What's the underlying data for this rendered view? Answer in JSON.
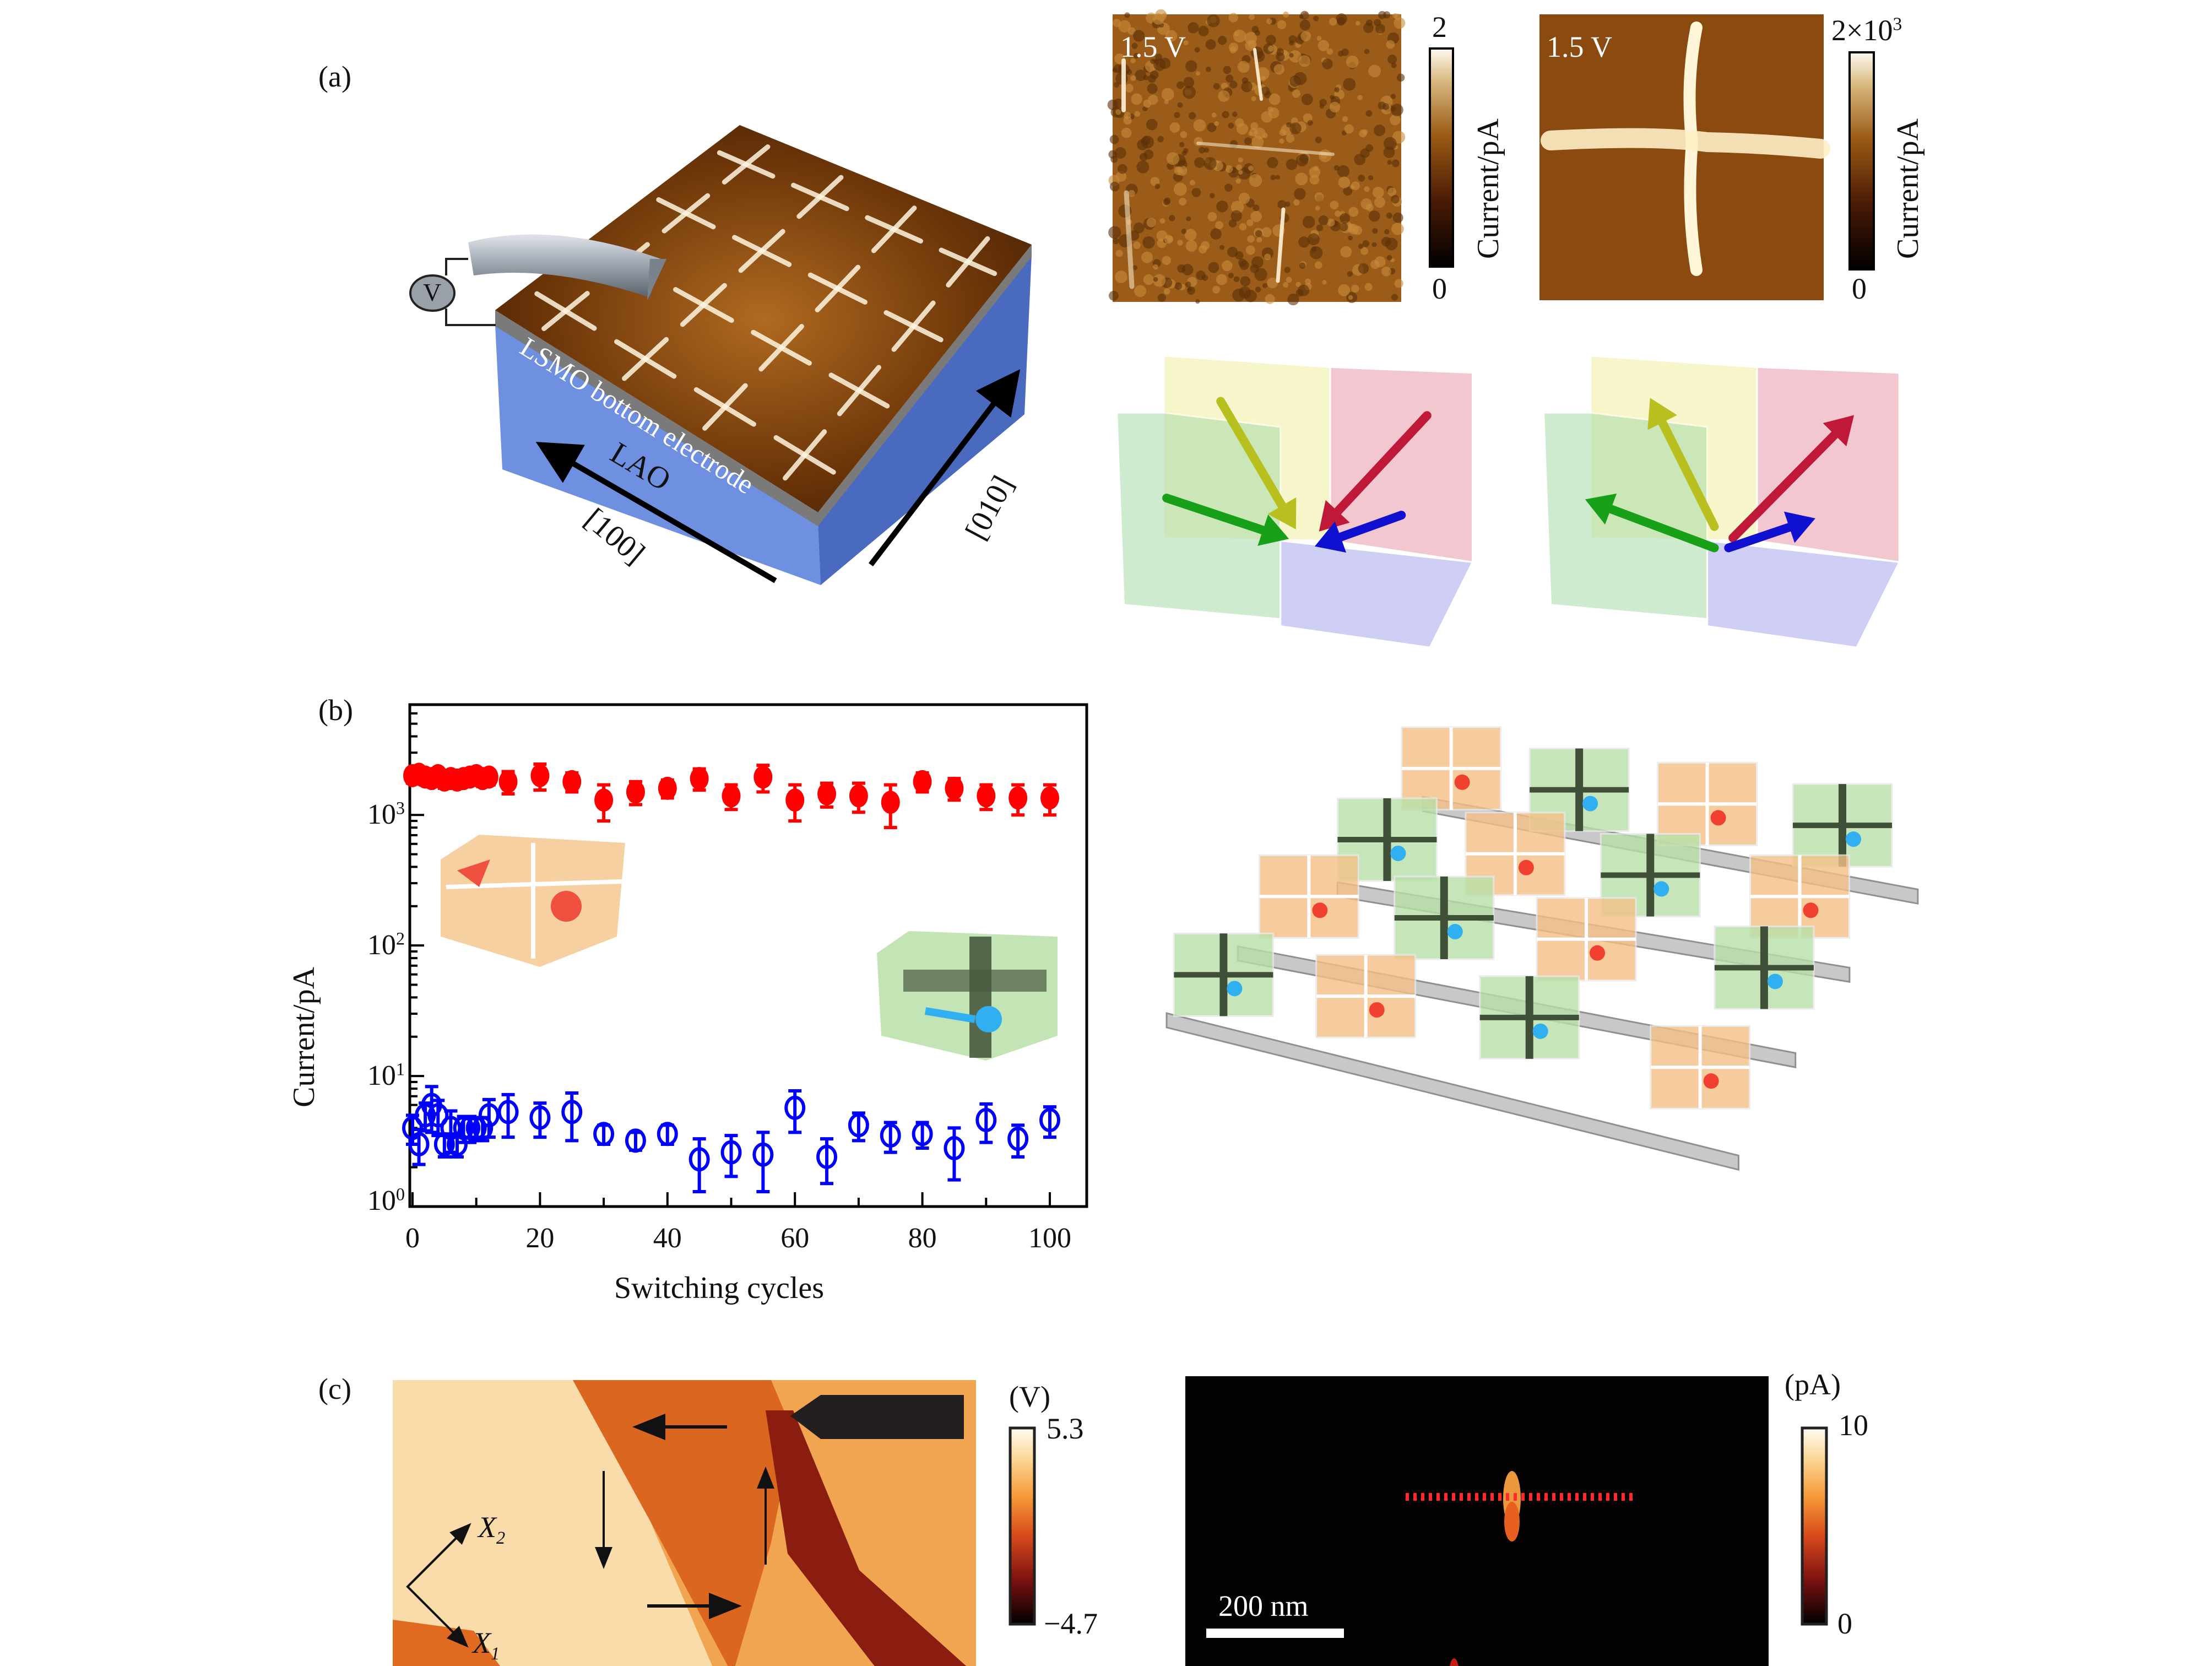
{
  "panels": {
    "a": {
      "label": "(a)",
      "device": {
        "layer_top": "LSMO bottom electrode",
        "substrate": "LAO",
        "axis_100": "[100]",
        "axis_010": "[010]",
        "voltage_symbol": "V"
      },
      "maps": [
        {
          "voltage": "1.5 V",
          "cbar_max": "2",
          "cbar_max_exp": "",
          "cbar_min": "0",
          "cbar_label": "Current/pA"
        },
        {
          "voltage": "1.5 V",
          "cbar_max": "2×10",
          "cbar_max_exp": "3",
          "cbar_min": "0",
          "cbar_label": "Current/pA"
        }
      ],
      "colormap": [
        "#000000",
        "#4a1a05",
        "#8a4a0e",
        "#c08a3a",
        "#fffaf0"
      ]
    },
    "b": {
      "label": "(b)",
      "grid_array_cells": [
        [
          "orange",
          "green",
          "orange",
          "green"
        ],
        [
          "green",
          "orange",
          "green",
          "orange"
        ],
        [
          "orange",
          "green",
          "orange",
          "green"
        ],
        [
          "green",
          "orange",
          "green",
          "orange"
        ]
      ]
    },
    "c": {
      "label": "(c)",
      "axis_x1": "X",
      "axis_x1_sub": "1",
      "axis_x2": "X",
      "axis_x2_sub": "2",
      "cbar1": {
        "unit": "(V)",
        "max": "5.3",
        "min": "−4.7"
      },
      "cbar2": {
        "unit": "(pA)",
        "max": "10",
        "min": "0"
      },
      "scale_bar": "200 nm",
      "colormap": [
        "#000000",
        "#8a1414",
        "#e8641c",
        "#f8a84a",
        "#fff8e8"
      ]
    }
  },
  "chart_data": {
    "type": "scatter",
    "xlabel": "Switching cycles",
    "ylabel": "Current/pA",
    "xlim": [
      0,
      102
    ],
    "ylim": [
      1,
      7000
    ],
    "yscale": "log",
    "xticks": [
      "0",
      "20",
      "40",
      "60",
      "80",
      "100"
    ],
    "yticks": [
      {
        "base": "10",
        "exp": "0"
      },
      {
        "base": "10",
        "exp": "1"
      },
      {
        "base": "10",
        "exp": "2"
      },
      {
        "base": "10",
        "exp": "3"
      }
    ],
    "grid": false,
    "series": [
      {
        "marker": "filled-circle",
        "color": "#ff0000",
        "x": [
          0,
          1,
          2,
          3,
          4,
          5,
          6,
          7,
          8,
          9,
          10,
          11,
          12,
          15,
          20,
          25,
          30,
          35,
          40,
          45,
          50,
          55,
          60,
          65,
          70,
          75,
          80,
          85,
          90,
          95,
          100
        ],
        "y": [
          2000,
          2050,
          1950,
          1900,
          2000,
          1850,
          1900,
          1850,
          1900,
          1950,
          2000,
          1900,
          1950,
          1800,
          2000,
          1800,
          1300,
          1500,
          1600,
          1900,
          1400,
          1950,
          1300,
          1450,
          1400,
          1250,
          1800,
          1600,
          1400,
          1350,
          1350
        ],
        "err": [
          250,
          250,
          250,
          250,
          250,
          250,
          250,
          250,
          250,
          250,
          250,
          250,
          250,
          350,
          450,
          300,
          400,
          300,
          250,
          350,
          300,
          450,
          400,
          300,
          350,
          450,
          300,
          300,
          300,
          350,
          350
        ]
      },
      {
        "marker": "open-circle",
        "color": "#0000ff",
        "x": [
          0,
          1,
          2,
          3,
          4,
          5,
          6,
          7,
          8,
          9,
          10,
          11,
          12,
          15,
          20,
          25,
          30,
          35,
          40,
          45,
          50,
          55,
          60,
          65,
          70,
          75,
          80,
          85,
          90,
          95,
          100
        ],
        "y": [
          4,
          3,
          5,
          6,
          5,
          3,
          4,
          3,
          4,
          4,
          4,
          4,
          5,
          5.3,
          4.8,
          5.3,
          3.6,
          3.2,
          3.6,
          2.3,
          2.6,
          2.5,
          5.7,
          2.4,
          4.2,
          3.5,
          3.6,
          2.8,
          4.6,
          3.3,
          4.6
        ],
        "err": [
          1,
          0.9,
          1.2,
          2.3,
          1.5,
          0.6,
          1.4,
          0.6,
          0.9,
          0.9,
          0.8,
          0.8,
          1.6,
          1.9,
          1.4,
          2.1,
          0.6,
          0.5,
          0.6,
          1.0,
          0.9,
          1.2,
          2.0,
          0.9,
          1.0,
          0.9,
          0.8,
          1.2,
          1.5,
          0.9,
          1.2
        ]
      }
    ]
  }
}
